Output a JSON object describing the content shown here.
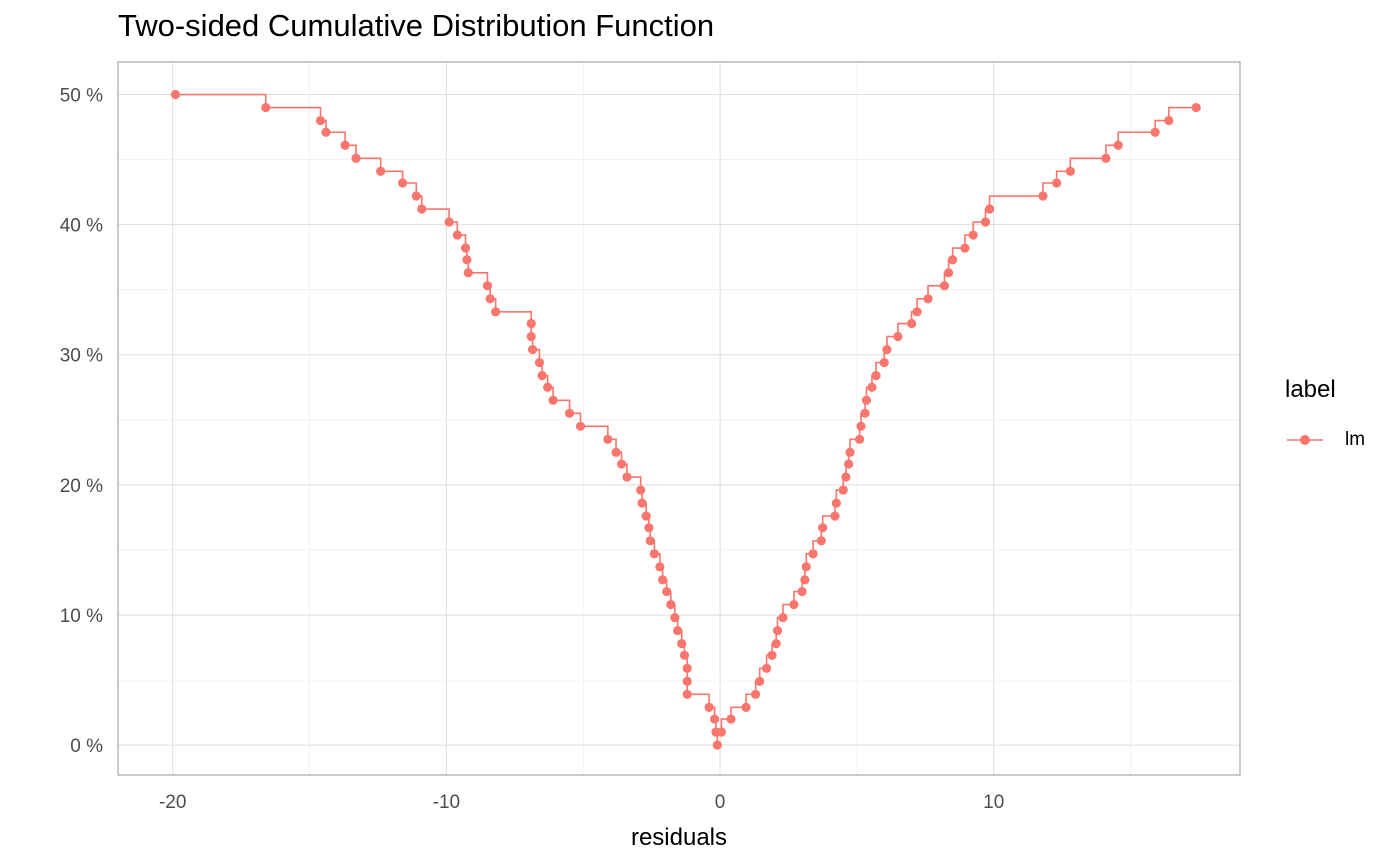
{
  "chart_data": {
    "type": "line",
    "title": "Two-sided Cumulative Distribution Function",
    "xlabel": "residuals",
    "ylabel": "",
    "xlim": [
      -22,
      19
    ],
    "ylim": [
      -2.3,
      52.5
    ],
    "x_ticks": [
      -20,
      -10,
      0,
      10
    ],
    "x_tick_labels": [
      "-20",
      "-10",
      "0",
      "10"
    ],
    "y_ticks": [
      0,
      10,
      20,
      30,
      40,
      50
    ],
    "y_tick_labels": [
      "0 %",
      "10 %",
      "20 %",
      "30 %",
      "40 %",
      "50 %"
    ],
    "grid": true,
    "legend_title": "label",
    "legend_position": "right",
    "series": [
      {
        "name": "lm",
        "color": "#F8766D",
        "step": true,
        "points": [
          [
            -19.9,
            50.0
          ],
          [
            -16.6,
            49.0
          ],
          [
            -14.6,
            48.0
          ],
          [
            -14.4,
            47.1
          ],
          [
            -13.7,
            46.1
          ],
          [
            -13.3,
            45.1
          ],
          [
            -12.4,
            44.1
          ],
          [
            -11.6,
            43.2
          ],
          [
            -11.1,
            42.2
          ],
          [
            -10.9,
            41.2
          ],
          [
            -9.9,
            40.2
          ],
          [
            -9.6,
            39.2
          ],
          [
            -9.3,
            38.2
          ],
          [
            -9.25,
            37.3
          ],
          [
            -9.2,
            36.3
          ],
          [
            -8.5,
            35.3
          ],
          [
            -8.4,
            34.3
          ],
          [
            -8.2,
            33.3
          ],
          [
            -6.9,
            32.4
          ],
          [
            -6.9,
            31.4
          ],
          [
            -6.85,
            30.4
          ],
          [
            -6.6,
            29.4
          ],
          [
            -6.5,
            28.4
          ],
          [
            -6.3,
            27.5
          ],
          [
            -6.1,
            26.5
          ],
          [
            -5.5,
            25.5
          ],
          [
            -5.1,
            24.5
          ],
          [
            -4.1,
            23.5
          ],
          [
            -3.8,
            22.5
          ],
          [
            -3.6,
            21.6
          ],
          [
            -3.4,
            20.6
          ],
          [
            -2.9,
            19.6
          ],
          [
            -2.85,
            18.6
          ],
          [
            -2.7,
            17.6
          ],
          [
            -2.6,
            16.7
          ],
          [
            -2.55,
            15.7
          ],
          [
            -2.4,
            14.7
          ],
          [
            -2.2,
            13.7
          ],
          [
            -2.1,
            12.7
          ],
          [
            -1.95,
            11.8
          ],
          [
            -1.8,
            10.8
          ],
          [
            -1.65,
            9.8
          ],
          [
            -1.55,
            8.8
          ],
          [
            -1.4,
            7.8
          ],
          [
            -1.3,
            6.9
          ],
          [
            -1.2,
            5.9
          ],
          [
            -1.2,
            4.9
          ],
          [
            -1.2,
            3.9
          ],
          [
            -0.4,
            2.9
          ],
          [
            -0.2,
            2.0
          ],
          [
            -0.15,
            1.0
          ],
          [
            0.05,
            1.0
          ],
          [
            -0.1,
            0.0
          ],
          [
            0.4,
            2.0
          ],
          [
            0.95,
            2.9
          ],
          [
            1.3,
            3.9
          ],
          [
            1.45,
            4.9
          ],
          [
            1.7,
            5.9
          ],
          [
            1.9,
            6.9
          ],
          [
            2.05,
            7.8
          ],
          [
            2.1,
            8.8
          ],
          [
            2.3,
            9.8
          ],
          [
            2.7,
            10.8
          ],
          [
            3.0,
            11.8
          ],
          [
            3.1,
            12.7
          ],
          [
            3.15,
            13.7
          ],
          [
            3.4,
            14.7
          ],
          [
            3.7,
            15.7
          ],
          [
            3.75,
            16.7
          ],
          [
            4.2,
            17.6
          ],
          [
            4.25,
            18.6
          ],
          [
            4.5,
            19.6
          ],
          [
            4.6,
            20.6
          ],
          [
            4.7,
            21.6
          ],
          [
            4.75,
            22.5
          ],
          [
            5.1,
            23.5
          ],
          [
            5.15,
            24.5
          ],
          [
            5.3,
            25.5
          ],
          [
            5.35,
            26.5
          ],
          [
            5.55,
            27.5
          ],
          [
            5.7,
            28.4
          ],
          [
            6.0,
            29.4
          ],
          [
            6.1,
            30.4
          ],
          [
            6.5,
            31.4
          ],
          [
            7.0,
            32.4
          ],
          [
            7.2,
            33.3
          ],
          [
            7.6,
            34.3
          ],
          [
            8.2,
            35.3
          ],
          [
            8.35,
            36.3
          ],
          [
            8.5,
            37.3
          ],
          [
            8.95,
            38.2
          ],
          [
            9.25,
            39.2
          ],
          [
            9.7,
            40.2
          ],
          [
            9.85,
            41.2
          ],
          [
            11.8,
            42.2
          ],
          [
            12.3,
            43.2
          ],
          [
            12.8,
            44.1
          ],
          [
            14.1,
            45.1
          ],
          [
            14.55,
            46.1
          ],
          [
            15.9,
            47.1
          ],
          [
            16.4,
            48.0
          ],
          [
            17.4,
            49.0
          ]
        ]
      }
    ]
  }
}
